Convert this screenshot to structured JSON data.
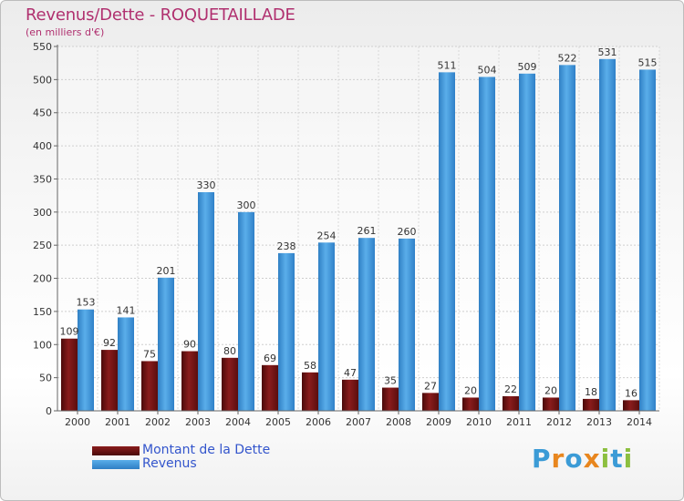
{
  "header": {
    "title": "Revenus/Dette - ROQUETAILLADE",
    "subtitle": "(en milliers d'€)"
  },
  "colors": {
    "dette": "#7a1515",
    "revenus": "#3a8fd6",
    "title": "#b0306f"
  },
  "legend": {
    "items": [
      {
        "label": "Montant de la Dette",
        "color": "#7a1515"
      },
      {
        "label": "Revenus",
        "color": "#3a8fd6"
      }
    ]
  },
  "logo": {
    "text": "Proxiti"
  },
  "chart_data": {
    "type": "bar",
    "title": "Revenus/Dette - ROQUETAILLADE",
    "subtitle": "(en milliers d'€)",
    "categories": [
      "2000",
      "2001",
      "2002",
      "2003",
      "2004",
      "2005",
      "2006",
      "2007",
      "2008",
      "2009",
      "2010",
      "2011",
      "2012",
      "2013",
      "2014"
    ],
    "series": [
      {
        "name": "Montant de la Dette",
        "color": "#7a1515",
        "values": [
          109,
          92,
          75,
          90,
          80,
          69,
          58,
          47,
          35,
          27,
          20,
          22,
          20,
          18,
          16
        ]
      },
      {
        "name": "Revenus",
        "color": "#3a8fd6",
        "values": [
          153,
          141,
          201,
          330,
          300,
          238,
          254,
          261,
          260,
          511,
          504,
          509,
          522,
          531,
          515
        ]
      }
    ],
    "ylim": [
      0,
      550
    ],
    "yticks": [
      0,
      50,
      100,
      150,
      200,
      250,
      300,
      350,
      400,
      450,
      500,
      550
    ],
    "grid": true,
    "legend_position": "bottom-left"
  }
}
